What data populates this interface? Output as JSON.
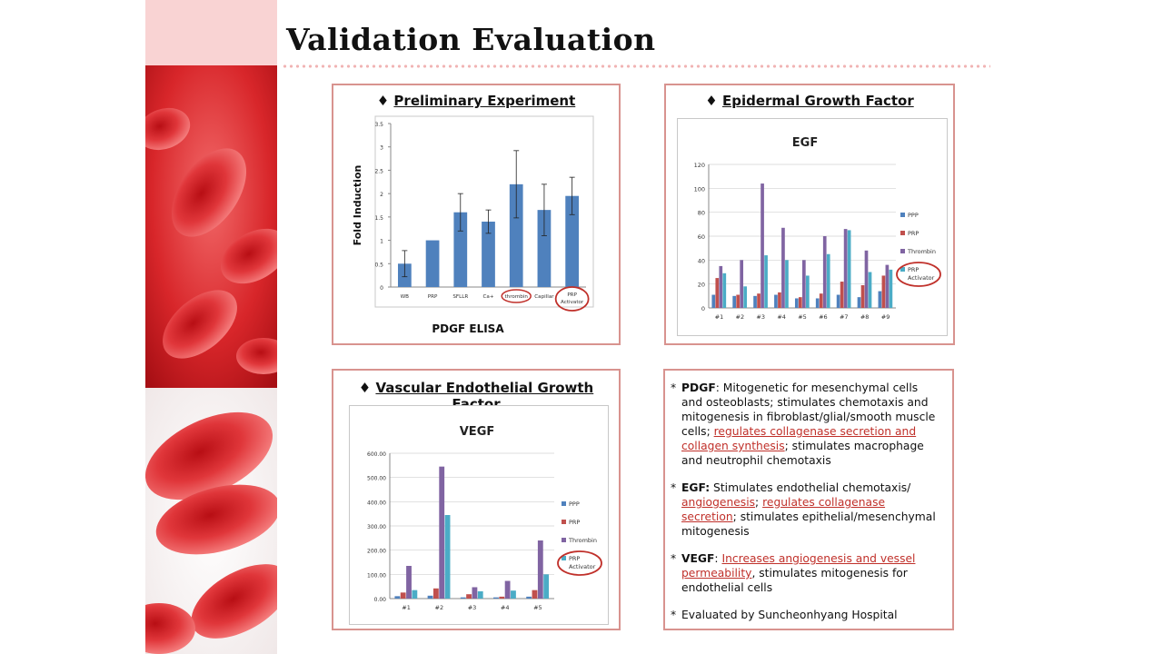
{
  "slide": {
    "title": "Validation Evaluation"
  },
  "panels": {
    "preliminary": {
      "bullet": "♦",
      "title": "Preliminary Experiment"
    },
    "egf": {
      "bullet": "♦",
      "title": "Epidermal Growth Factor"
    },
    "vegf": {
      "bullet": "♦",
      "title": "Vascular Endothelial Growth Factor"
    }
  },
  "chart_data": [
    {
      "type": "bar",
      "ylabel": "Fold Induction",
      "xlabel": "PDGF  ELISA",
      "ylim": [
        0,
        3.5
      ],
      "yticks": [
        "0",
        "0.5",
        "1",
        "1.5",
        "2",
        "2.5",
        "3",
        "3.5"
      ],
      "categories": [
        "WB",
        "PRP",
        "SFLLR",
        "Ca+",
        "thrombin",
        "Capillar",
        "PRP Activator"
      ],
      "values": [
        0.5,
        1.0,
        1.6,
        1.4,
        2.2,
        1.65,
        1.95
      ],
      "errors": [
        0.28,
        0.0,
        0.4,
        0.25,
        0.72,
        0.55,
        0.4
      ],
      "color": "#4f81bd",
      "circled": [
        "thrombin",
        "PRP Activator"
      ],
      "grid": false
    },
    {
      "type": "bar",
      "title": "EGF",
      "ylim": [
        0,
        120
      ],
      "yticks": [
        "0",
        "20",
        "40",
        "60",
        "80",
        "100",
        "120"
      ],
      "categories": [
        "#1",
        "#2",
        "#3",
        "#4",
        "#5",
        "#6",
        "#7",
        "#8",
        "#9"
      ],
      "series": [
        {
          "name": "PPP",
          "color": "#4f81bd",
          "values": [
            11,
            10,
            10,
            11,
            8,
            8,
            11,
            9,
            14
          ]
        },
        {
          "name": "PRP",
          "color": "#c0504d",
          "values": [
            25,
            11,
            12,
            13,
            9,
            12,
            22,
            19,
            27
          ]
        },
        {
          "name": "Thrombin",
          "color": "#8064a2",
          "values": [
            35,
            40,
            104,
            67,
            40,
            60,
            66,
            48,
            36
          ]
        },
        {
          "name": "PRP Activator",
          "color": "#4bacc6",
          "values": [
            29,
            18,
            44,
            40,
            27,
            45,
            65,
            30,
            32
          ]
        }
      ],
      "legend": "right",
      "circled": [
        "PRP Activator"
      ],
      "grid": true
    },
    {
      "type": "bar",
      "title": "VEGF",
      "ylim": [
        0,
        600
      ],
      "yticks": [
        "0.00",
        "100.00",
        "200.00",
        "300.00",
        "400.00",
        "500.00",
        "600.00"
      ],
      "categories": [
        "#1",
        "#2",
        "#3",
        "#4",
        "#5"
      ],
      "series": [
        {
          "name": "PPP",
          "color": "#4f81bd",
          "values": [
            10,
            12,
            5,
            5,
            8
          ]
        },
        {
          "name": "PRP",
          "color": "#c0504d",
          "values": [
            25,
            42,
            18,
            8,
            35
          ]
        },
        {
          "name": "Thrombin",
          "color": "#8064a2",
          "values": [
            135,
            545,
            47,
            73,
            240
          ]
        },
        {
          "name": "PRP Activator",
          "color": "#4bacc6",
          "values": [
            35,
            345,
            30,
            33,
            100
          ]
        }
      ],
      "legend": "right",
      "circled": [
        "PRP Activator"
      ],
      "grid": true
    }
  ],
  "notes": [
    {
      "star": "*",
      "term": "PDGF",
      "parts": [
        {
          "text": ": Mitogenetic for mesenchymal cells and osteoblasts; stimulates chemotaxis and mitogenesis in fibroblast/glial/smooth muscle cells; ",
          "u": false
        },
        {
          "text": "regulates collagenase secretion and collagen synthesis",
          "u": true
        },
        {
          "text": "; stimulates macrophage and neutrophil chemotaxis",
          "u": false
        }
      ]
    },
    {
      "star": "*",
      "term": "EGF:",
      "parts": [
        {
          "text": " Stimulates endothelial chemotaxis/ ",
          "u": false
        },
        {
          "text": "angiogenesis",
          "u": true
        },
        {
          "text": "; ",
          "u": false
        },
        {
          "text": "regulates collagenase secretion",
          "u": true
        },
        {
          "text": "; stimulates epithelial/mesenchymal mitogenesis",
          "u": false
        }
      ]
    },
    {
      "star": "*",
      "term": "VEGF",
      "parts": [
        {
          "text": ": ",
          "u": false
        },
        {
          "text": "Increases angiogenesis and vessel permeability",
          "u": true
        },
        {
          "text": ", stimulates mitogenesis for endothelial cells",
          "u": false
        }
      ]
    },
    {
      "star": "*",
      "term": "",
      "parts": [
        {
          "text": "Evaluated by Suncheonhyang Hospital",
          "u": false
        }
      ]
    }
  ]
}
